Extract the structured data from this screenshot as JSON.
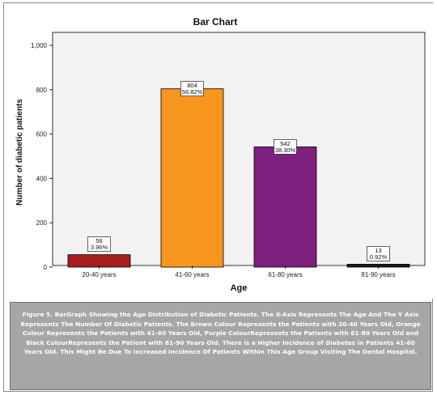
{
  "chart_data": {
    "type": "bar",
    "title": "Bar Chart",
    "xlabel": "Age",
    "ylabel": "Number of diabetic patients",
    "categories": [
      "20-40 years",
      "41-60 years",
      "61-80 years",
      "81-90 years"
    ],
    "values": [
      56,
      804,
      542,
      13
    ],
    "data_labels": [
      [
        "56",
        "3.96%"
      ],
      [
        "804",
        "56.82%"
      ],
      [
        "542",
        "38.30%"
      ],
      [
        "13",
        "0.92%"
      ]
    ],
    "colors": [
      "#a61d1d",
      "#f6961d",
      "#7e1f7e",
      "#1a1a1a"
    ],
    "ylim": [
      0,
      1000
    ],
    "yticks": [
      0,
      200,
      400,
      600,
      800,
      1000
    ],
    "ytick_labels": [
      "0",
      "200",
      "400",
      "600",
      "800",
      "1,000"
    ],
    "grid": false,
    "background": "#f2f2f2"
  },
  "caption": "Figure 5. BarGraph Showing the Age Distribution of Diabetic Patients. The X-Axis Represents The Age And The Y Axis Represents The Number Of Diabetic Patients. The Brown Colour Represents the Patients with 20-40 Years Old, Orange Colour Represents the Patients with 41-60 Years Old, Purple ColourRepresents the Patients with 61-80 Years Old and Black ColourRepresents the Patient with 81-90 Years Old. There is a Higher Incidence of Diabetes in Patients 41-60 Years Old. This Might Be Due To Increased Incidence Of Patients Within This Age Group Visiting The Dental Hospital."
}
